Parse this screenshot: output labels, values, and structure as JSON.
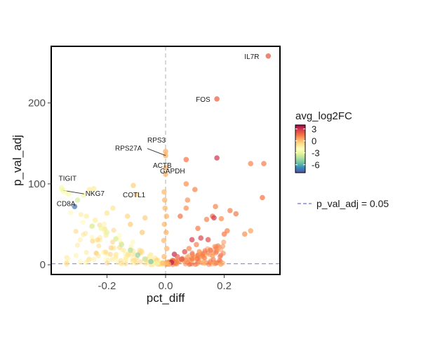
{
  "chart_data": {
    "type": "scatter",
    "title": "",
    "xlabel": "pct_diff",
    "ylabel": "p_val_adj",
    "xlim": [
      -0.39,
      0.39
    ],
    "ylim": [
      -12,
      270
    ],
    "x_ticks": [
      -0.2,
      0.0,
      0.2
    ],
    "x_tick_labels": [
      "-0.2",
      "0.0",
      "0.2"
    ],
    "y_ticks": [
      0,
      100,
      200
    ],
    "y_tick_labels": [
      "0",
      "100",
      "200"
    ],
    "vline_x": 0,
    "hline": {
      "y": 1.3,
      "label": "p_val_adj = 0.05"
    },
    "color_scale": {
      "title": "avg_log2FC",
      "min": -8,
      "max": 4,
      "ticks": [
        3,
        0,
        -3,
        -6
      ],
      "tick_labels": [
        "3",
        "0",
        "-3",
        "-6"
      ],
      "palette": [
        "#5e4fa2",
        "#3288bd",
        "#66c2a5",
        "#abdda4",
        "#e6f598",
        "#ffffbf",
        "#fee08b",
        "#fdae61",
        "#f46d43",
        "#d53e4f",
        "#9e0142"
      ]
    },
    "legend_position": "right",
    "grid": false,
    "labeled_points": [
      {
        "label": "IL7R",
        "x": 0.35,
        "y": 258,
        "c": 2.0
      },
      {
        "label": "FOS",
        "x": 0.175,
        "y": 205,
        "c": 1.8
      },
      {
        "label": "RPS3",
        "x": 0.0,
        "y": 140,
        "c": 0.3
      },
      {
        "label": "RPS27A",
        "x": 0.0,
        "y": 135,
        "c": 0.3
      },
      {
        "label": "ACTB",
        "x": 0.0,
        "y": 120,
        "c": 0.2
      },
      {
        "label": "GAPDH",
        "x": 0.0,
        "y": 112,
        "c": 0.2
      },
      {
        "label": "TIGIT",
        "x": -0.355,
        "y": 95,
        "c": -2.5
      },
      {
        "label": "NKG7",
        "x": -0.35,
        "y": 92,
        "c": -2.8
      },
      {
        "label": "CD8A",
        "x": -0.345,
        "y": 90,
        "c": -2.2
      },
      {
        "label": "COTL1",
        "x": -0.11,
        "y": 98,
        "c": -0.5
      }
    ],
    "points": [
      {
        "x": 0.175,
        "y": 132,
        "c": 3.0
      },
      {
        "x": 0.07,
        "y": 130,
        "c": 1.5
      },
      {
        "x": 0.29,
        "y": 125,
        "c": 1.2
      },
      {
        "x": 0.335,
        "y": 125,
        "c": 1.3
      },
      {
        "x": 0.33,
        "y": 83,
        "c": 1.5
      },
      {
        "x": 0.07,
        "y": 100,
        "c": 1.0
      },
      {
        "x": 0.1,
        "y": 93,
        "c": 1.2
      },
      {
        "x": 0.075,
        "y": 80,
        "c": 0.9
      },
      {
        "x": 0.07,
        "y": 70,
        "c": 1.0
      },
      {
        "x": 0.17,
        "y": 72,
        "c": 1.2
      },
      {
        "x": 0.22,
        "y": 67,
        "c": 1.3
      },
      {
        "x": 0.24,
        "y": 63,
        "c": 1.4
      },
      {
        "x": 0.16,
        "y": 60,
        "c": 1.6
      },
      {
        "x": 0.19,
        "y": 57,
        "c": 1.0
      },
      {
        "x": 0.14,
        "y": 56,
        "c": 1.2
      },
      {
        "x": 0.165,
        "y": 58,
        "c": 2.9
      },
      {
        "x": 0.05,
        "y": 60,
        "c": 1.5
      },
      {
        "x": 0.11,
        "y": 45,
        "c": 1.3
      },
      {
        "x": 0.21,
        "y": 42,
        "c": 1.2
      },
      {
        "x": 0.27,
        "y": 38,
        "c": 1.0
      },
      {
        "x": 0.29,
        "y": 42,
        "c": 0.6
      },
      {
        "x": 0.2,
        "y": 38,
        "c": 1.4
      },
      {
        "x": 0.12,
        "y": 33,
        "c": 2.6
      },
      {
        "x": 0.09,
        "y": 31,
        "c": 2.8
      },
      {
        "x": 0.145,
        "y": 31,
        "c": 2.4
      },
      {
        "x": 0.105,
        "y": 25,
        "c": 1.2
      },
      {
        "x": 0.08,
        "y": 20,
        "c": 1.1
      },
      {
        "x": 0.065,
        "y": 16,
        "c": 2.5
      },
      {
        "x": 0.03,
        "y": 13,
        "c": 3.2
      },
      {
        "x": 0.04,
        "y": 10,
        "c": 2.0
      },
      {
        "x": 0.055,
        "y": 7,
        "c": 2.3
      },
      {
        "x": 0.025,
        "y": 5,
        "c": 1.5
      },
      {
        "x": 0.02,
        "y": 3,
        "c": 3.4
      },
      {
        "x": -0.1,
        "y": 87,
        "c": -0.5
      },
      {
        "x": -0.18,
        "y": 70,
        "c": -1.0
      },
      {
        "x": -0.2,
        "y": 64,
        "c": -1.0
      },
      {
        "x": -0.13,
        "y": 60,
        "c": -0.6
      },
      {
        "x": -0.07,
        "y": 58,
        "c": -0.4
      },
      {
        "x": -0.24,
        "y": 55,
        "c": -1.3
      },
      {
        "x": -0.12,
        "y": 50,
        "c": -0.4
      },
      {
        "x": -0.22,
        "y": 45,
        "c": -2.8
      },
      {
        "x": -0.08,
        "y": 40,
        "c": -0.3
      },
      {
        "x": -0.31,
        "y": 72,
        "c": -7.2
      },
      {
        "x": -0.3,
        "y": 80,
        "c": -3.5
      },
      {
        "x": -0.28,
        "y": 86,
        "c": -2.5
      },
      {
        "x": -0.33,
        "y": 88,
        "c": -2.2
      },
      {
        "x": -0.26,
        "y": 93,
        "c": -1.2
      },
      {
        "x": -0.245,
        "y": 94,
        "c": -1.3
      },
      {
        "x": -0.27,
        "y": 60,
        "c": -1.4
      },
      {
        "x": -0.25,
        "y": 48,
        "c": -3.5
      },
      {
        "x": -0.2,
        "y": 40,
        "c": -3.2
      },
      {
        "x": -0.17,
        "y": 32,
        "c": -3.5
      },
      {
        "x": -0.15,
        "y": 25,
        "c": -3.8
      },
      {
        "x": -0.12,
        "y": 18,
        "c": -4.2
      },
      {
        "x": -0.095,
        "y": 12,
        "c": -4.8
      },
      {
        "x": -0.07,
        "y": 7,
        "c": -3.9
      },
      {
        "x": -0.05,
        "y": 4,
        "c": -5.3
      },
      {
        "x": -0.03,
        "y": 2,
        "c": -2.8
      },
      {
        "x": -0.005,
        "y": 90,
        "c": 0.2
      },
      {
        "x": -0.003,
        "y": 80,
        "c": 0.3
      },
      {
        "x": -0.002,
        "y": 70,
        "c": 0.2
      },
      {
        "x": 0.003,
        "y": 60,
        "c": 0.3
      },
      {
        "x": -0.004,
        "y": 50,
        "c": 0.2
      },
      {
        "x": 0.002,
        "y": 40,
        "c": 0.4
      },
      {
        "x": -0.006,
        "y": 30,
        "c": 0.2
      },
      {
        "x": 0.004,
        "y": 20,
        "c": 0.3
      },
      {
        "x": -0.005,
        "y": 10,
        "c": 0.2
      },
      {
        "x": -0.01,
        "y": 2,
        "c": 0.1
      },
      {
        "x": 0.01,
        "y": 1,
        "c": 0.1
      }
    ]
  }
}
